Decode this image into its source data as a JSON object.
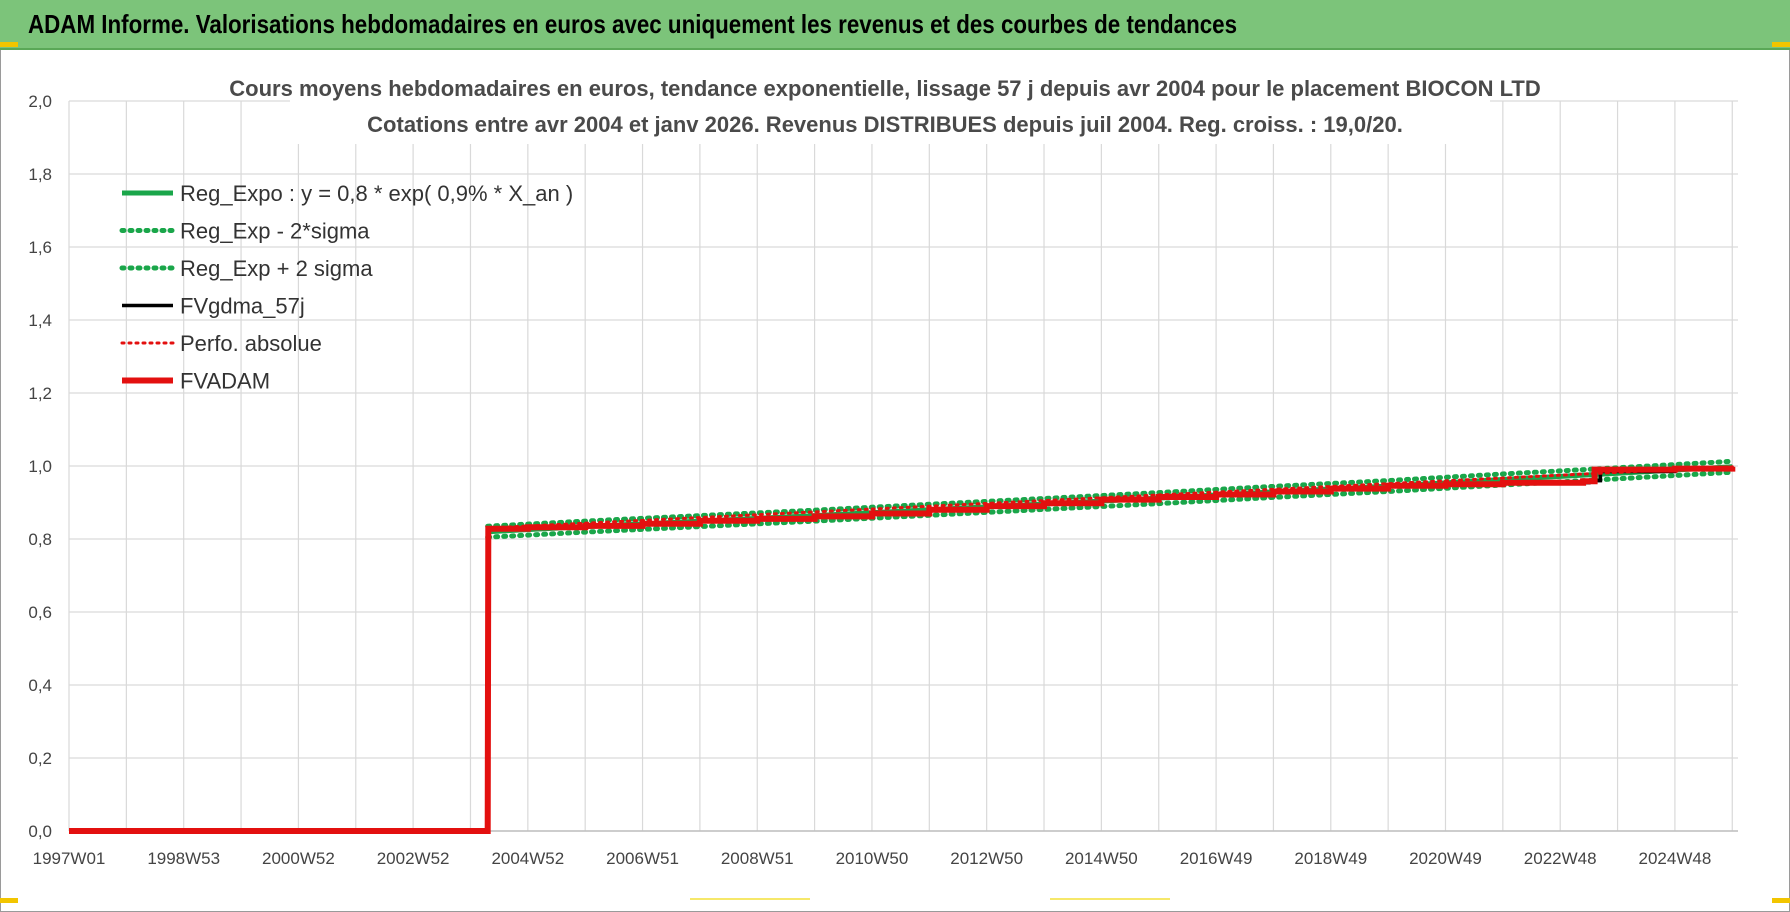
{
  "banner": {
    "title": "ADAM Informe. Valorisations hebdomadaires en euros avec uniquement les revenus et des courbes de tendances"
  },
  "colors": {
    "banner_bg": "#7cc47a",
    "reg_green": "#1aa64a",
    "fvgdma_black": "#000000",
    "fvadam_red": "#e3100f",
    "perfo_red": "#e3100f",
    "grid": "#d9d9d9"
  },
  "chart_data": {
    "type": "line",
    "title": "Cours moyens hebdomadaires en euros, tendance exponentielle, lissage 57 j depuis avr 2004 pour le placement BIOCON LTD",
    "subtitle": "Cotations entre avr 2004 et janv 2026.  Revenus DISTRIBUES depuis juil 2004.  Reg. croiss. : 19,0/20.",
    "xlabel": "",
    "ylabel": "",
    "ylim": [
      0,
      2.0
    ],
    "xlim": [
      1997.0,
      2026.1
    ],
    "y_ticks": [
      "0,0",
      "0,2",
      "0,4",
      "0,6",
      "0,8",
      "1,0",
      "1,2",
      "1,4",
      "1,6",
      "1,8",
      "2,0"
    ],
    "y_tick_values": [
      0,
      0.2,
      0.4,
      0.6,
      0.8,
      1.0,
      1.2,
      1.4,
      1.6,
      1.8,
      2.0
    ],
    "x_ticks": [
      "1997W01",
      "1998W53",
      "2000W52",
      "2002W52",
      "2004W52",
      "2006W51",
      "2008W51",
      "2010W50",
      "2012W50",
      "2014W50",
      "2016W49",
      "2018W49",
      "2020W49",
      "2022W48",
      "2024W48"
    ],
    "x_tick_values": [
      1997.0,
      1999.0,
      2001.0,
      2003.0,
      2005.0,
      2007.0,
      2009.0,
      2011.0,
      2013.0,
      2015.0,
      2017.0,
      2019.0,
      2021.0,
      2023.0,
      2025.0
    ],
    "grid": true,
    "legend_position": "top-left",
    "series": [
      {
        "name": "Reg_Expo : y = 0,8 * exp( 0,9% *  X_an )",
        "style": "solid",
        "color": "#1aa64a",
        "x": [
          2004.3,
          2006.0,
          2008.0,
          2010.0,
          2012.0,
          2014.0,
          2016.0,
          2018.0,
          2020.0,
          2022.0,
          2024.0,
          2026.0
        ],
        "y": [
          0.82,
          0.834,
          0.849,
          0.864,
          0.88,
          0.896,
          0.912,
          0.929,
          0.945,
          0.963,
          0.98,
          0.998
        ]
      },
      {
        "name": "Reg_Exp - 2*sigma",
        "style": "dotted",
        "color": "#1aa64a",
        "x": [
          2004.3,
          2006.0,
          2008.0,
          2010.0,
          2012.0,
          2014.0,
          2016.0,
          2018.0,
          2020.0,
          2022.0,
          2024.0,
          2026.0
        ],
        "y": [
          0.805,
          0.819,
          0.834,
          0.849,
          0.865,
          0.881,
          0.897,
          0.914,
          0.93,
          0.948,
          0.965,
          0.983
        ]
      },
      {
        "name": "Reg_Exp + 2 sigma",
        "style": "dotted",
        "color": "#1aa64a",
        "x": [
          2004.3,
          2006.0,
          2008.0,
          2010.0,
          2012.0,
          2014.0,
          2016.0,
          2018.0,
          2020.0,
          2022.0,
          2024.0,
          2026.0
        ],
        "y": [
          0.835,
          0.849,
          0.864,
          0.879,
          0.895,
          0.911,
          0.927,
          0.944,
          0.96,
          0.978,
          0.995,
          1.013
        ]
      },
      {
        "name": "FVgdma_57j",
        "style": "solid",
        "color": "#000000",
        "x": [
          1997.0,
          2004.3,
          2004.31,
          2005.0,
          2006.0,
          2007.0,
          2008.0,
          2009.0,
          2010.0,
          2011.0,
          2012.0,
          2013.0,
          2014.0,
          2015.0,
          2016.0,
          2017.0,
          2018.0,
          2019.0,
          2020.0,
          2021.0,
          2022.0,
          2023.5,
          2023.7,
          2025.0,
          2026.0
        ],
        "y": [
          0,
          0,
          0.828,
          0.832,
          0.836,
          0.842,
          0.85,
          0.855,
          0.862,
          0.87,
          0.88,
          0.89,
          0.898,
          0.908,
          0.915,
          0.922,
          0.93,
          0.938,
          0.946,
          0.95,
          0.954,
          0.96,
          0.985,
          0.992,
          0.998
        ]
      },
      {
        "name": "Perfo. absolue",
        "style": "dotted",
        "color": "#e3100f",
        "x": [
          2004.3,
          2026.0
        ],
        "y": [
          0.83,
          0.998
        ]
      },
      {
        "name": "FVADAM",
        "style": "solid",
        "color": "#e3100f",
        "x": [
          1997.0,
          2004.3,
          2004.31,
          2005.0,
          2006.0,
          2007.0,
          2008.0,
          2009.0,
          2010.0,
          2011.0,
          2012.0,
          2013.0,
          2014.0,
          2015.0,
          2016.0,
          2017.0,
          2018.0,
          2019.0,
          2020.0,
          2021.0,
          2022.0,
          2023.4,
          2023.6,
          2025.0,
          2026.0
        ],
        "y": [
          0,
          0,
          0.828,
          0.832,
          0.836,
          0.842,
          0.85,
          0.855,
          0.862,
          0.87,
          0.88,
          0.89,
          0.898,
          0.908,
          0.915,
          0.922,
          0.93,
          0.938,
          0.946,
          0.95,
          0.954,
          0.958,
          0.99,
          0.993,
          0.998
        ]
      }
    ]
  }
}
